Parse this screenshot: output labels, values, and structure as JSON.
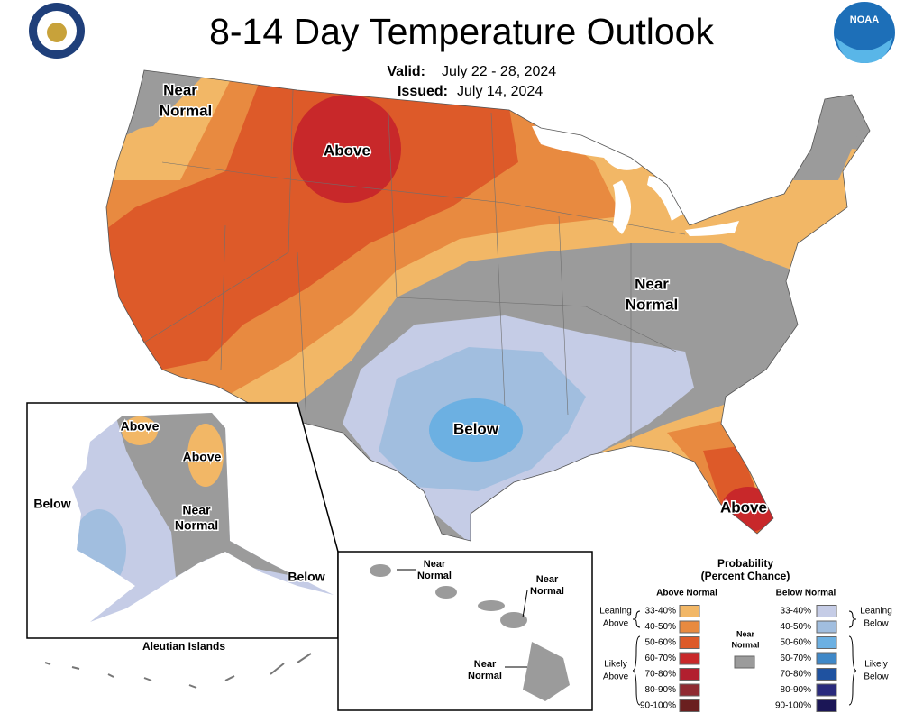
{
  "header": {
    "title": "8-14 Day Temperature Outlook",
    "valid_label": "Valid:",
    "valid": "July 22 - 28, 2024",
    "issued_label": "Issued:",
    "issued": "July 14, 2024",
    "logo": "NOAA"
  },
  "map_labels": {
    "nw_near_normal": [
      "Near",
      "Normal"
    ],
    "north_above": "Above",
    "east_near_normal": [
      "Near",
      "Normal"
    ],
    "south_below": "Below",
    "florida_above": "Above"
  },
  "alaska": {
    "above_north": "Above",
    "above_east": "Above",
    "near_normal": [
      "Near",
      "Normal"
    ],
    "below_west": "Below",
    "below_southeast": "Below",
    "aleutian_title": "Aleutian Islands"
  },
  "hawaii": {
    "west": [
      "Near",
      "Normal"
    ],
    "east": [
      "Near",
      "Normal"
    ],
    "south": [
      "Near",
      "Normal"
    ]
  },
  "legend": {
    "title": "Probability",
    "subtitle": "(Percent Chance)",
    "above_title": "Above Normal",
    "below_title": "Below Normal",
    "near_normal": {
      "lines": [
        "Near",
        "Normal"
      ],
      "color": "#9b9b9b"
    },
    "above_groups": {
      "leaning": [
        "Leaning",
        "Above"
      ],
      "likely": [
        "Likely",
        "Above"
      ]
    },
    "below_groups": {
      "leaning": [
        "Leaning",
        "Below"
      ],
      "likely": [
        "Likely",
        "Below"
      ]
    },
    "above": [
      {
        "label": "33-40%",
        "color": "#f2b766"
      },
      {
        "label": "40-50%",
        "color": "#e88a40"
      },
      {
        "label": "50-60%",
        "color": "#dd5a29"
      },
      {
        "label": "60-70%",
        "color": "#c8282a"
      },
      {
        "label": "70-80%",
        "color": "#b21f2f"
      },
      {
        "label": "80-90%",
        "color": "#8f2b33"
      },
      {
        "label": "90-100%",
        "color": "#6a1f1f"
      }
    ],
    "below": [
      {
        "label": "33-40%",
        "color": "#c5cce6"
      },
      {
        "label": "40-50%",
        "color": "#a1bedf"
      },
      {
        "label": "50-60%",
        "color": "#6cb0e2"
      },
      {
        "label": "60-70%",
        "color": "#3f88c8"
      },
      {
        "label": "70-80%",
        "color": "#1f52a0"
      },
      {
        "label": "80-90%",
        "color": "#2a2b7d"
      },
      {
        "label": "90-100%",
        "color": "#1b1656"
      }
    ]
  }
}
